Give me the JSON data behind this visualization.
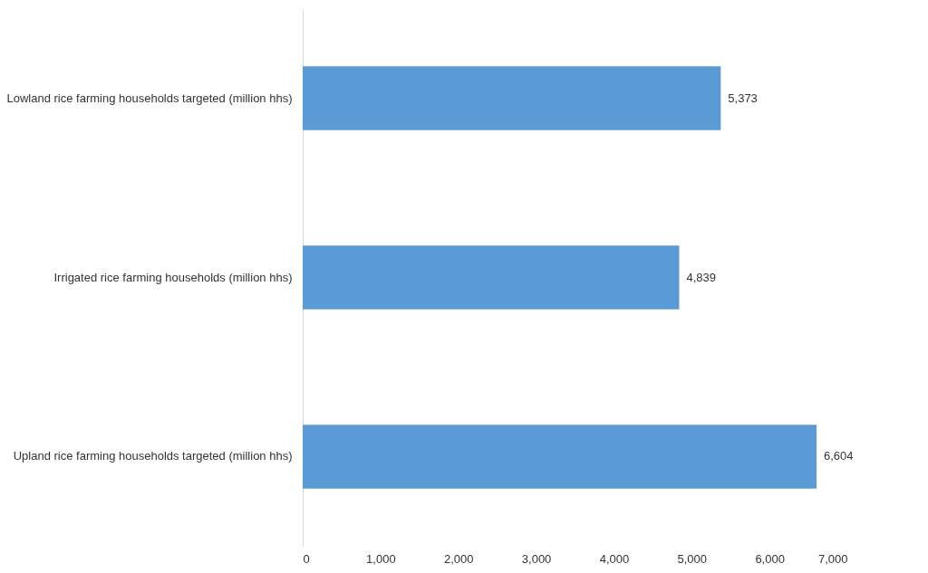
{
  "chart_data": {
    "type": "bar",
    "orientation": "horizontal",
    "categories": [
      "Lowland rice farming households targeted (million hhs)",
      "Irrigated rice farming households (million hhs)",
      "Upland rice farming households targeted (million hhs)"
    ],
    "values": [
      5373,
      4839,
      6604
    ],
    "value_labels": [
      "5,373",
      "4,839",
      "6,604"
    ],
    "color": "#5b9bd5",
    "xlim": [
      0,
      7000
    ],
    "xticks": [
      0,
      {
        "value": 1000,
        "label": "1,000"
      },
      {
        "value": 2000,
        "label": "2,000"
      },
      {
        "value": 3000,
        "label": "3,000"
      },
      {
        "value": 4000,
        "label": "4,000"
      },
      {
        "value": 5000,
        "label": "5,000"
      },
      {
        "value": 6000,
        "label": "6,000"
      },
      {
        "value": 7000,
        "label": "7,000"
      }
    ],
    "grid": false
  }
}
